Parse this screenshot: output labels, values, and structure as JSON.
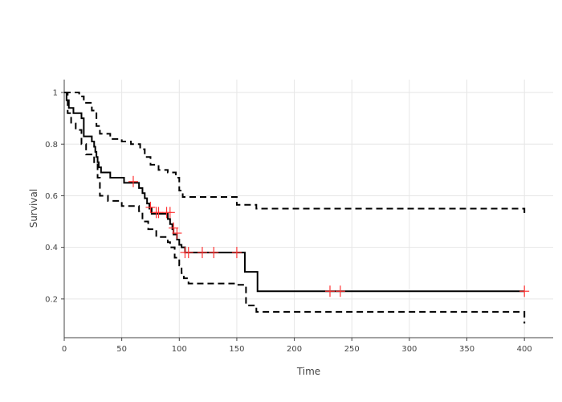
{
  "chart_data": {
    "type": "line",
    "title": "",
    "xlabel": "Time",
    "ylabel": "Survival",
    "xlim": [
      0,
      425
    ],
    "ylim": [
      0.05,
      1.05
    ],
    "xticks": [
      0,
      50,
      100,
      150,
      200,
      250,
      300,
      350,
      400
    ],
    "yticks": [
      0.2,
      0.4,
      0.6,
      0.8,
      1
    ],
    "ytick_labels": [
      "0.2",
      "0.4",
      "0.6",
      "0.8",
      "1"
    ],
    "grid": true,
    "legend": "none",
    "series": [
      {
        "role": "estimate",
        "style": "solid",
        "color": "#000000",
        "x": [
          0,
          2,
          4,
          8,
          15,
          17,
          24,
          26,
          27,
          28,
          29,
          30,
          32,
          40,
          52,
          62,
          65,
          68,
          70,
          72,
          74,
          76,
          80,
          88,
          90,
          92,
          94,
          95,
          98,
          100,
          102,
          105,
          110,
          130,
          150,
          157,
          168,
          400
        ],
        "y": [
          1.0,
          0.97,
          0.94,
          0.92,
          0.9,
          0.83,
          0.81,
          0.79,
          0.77,
          0.75,
          0.73,
          0.71,
          0.69,
          0.67,
          0.65,
          0.65,
          0.63,
          0.61,
          0.59,
          0.57,
          0.55,
          0.53,
          0.53,
          0.53,
          0.51,
          0.49,
          0.47,
          0.45,
          0.43,
          0.41,
          0.4,
          0.38,
          0.38,
          0.38,
          0.38,
          0.305,
          0.23,
          0.23
        ]
      },
      {
        "role": "upper",
        "style": "dashed",
        "color": "#000000",
        "x": [
          0,
          8,
          13,
          17,
          24,
          28,
          31,
          40,
          50,
          58,
          66,
          70,
          75,
          82,
          90,
          97,
          100,
          103,
          150,
          158,
          167,
          400
        ],
        "y": [
          1.0,
          1.0,
          0.985,
          0.96,
          0.93,
          0.87,
          0.84,
          0.82,
          0.81,
          0.8,
          0.78,
          0.75,
          0.72,
          0.7,
          0.69,
          0.67,
          0.62,
          0.595,
          0.565,
          0.565,
          0.55,
          0.52
        ]
      },
      {
        "role": "lower",
        "style": "dashed",
        "color": "#000000",
        "x": [
          0,
          3,
          6,
          10,
          15,
          19,
          26,
          29,
          31,
          38,
          50,
          65,
          68,
          73,
          80,
          90,
          92,
          96,
          100,
          102,
          104,
          108,
          150,
          158,
          167,
          400
        ],
        "y": [
          1.0,
          0.92,
          0.88,
          0.855,
          0.8,
          0.76,
          0.73,
          0.67,
          0.6,
          0.58,
          0.56,
          0.54,
          0.5,
          0.47,
          0.44,
          0.42,
          0.4,
          0.36,
          0.33,
          0.3,
          0.28,
          0.26,
          0.255,
          0.175,
          0.15,
          0.105
        ]
      }
    ],
    "censor_marks": {
      "color": "#ff3333",
      "x": [
        60,
        75,
        80,
        82,
        89,
        92,
        95,
        98,
        105,
        108,
        120,
        130,
        150,
        231,
        240,
        400
      ],
      "y": [
        0.655,
        0.555,
        0.535,
        0.535,
        0.535,
        0.535,
        0.475,
        0.455,
        0.38,
        0.38,
        0.38,
        0.38,
        0.38,
        0.23,
        0.23,
        0.23
      ]
    }
  }
}
